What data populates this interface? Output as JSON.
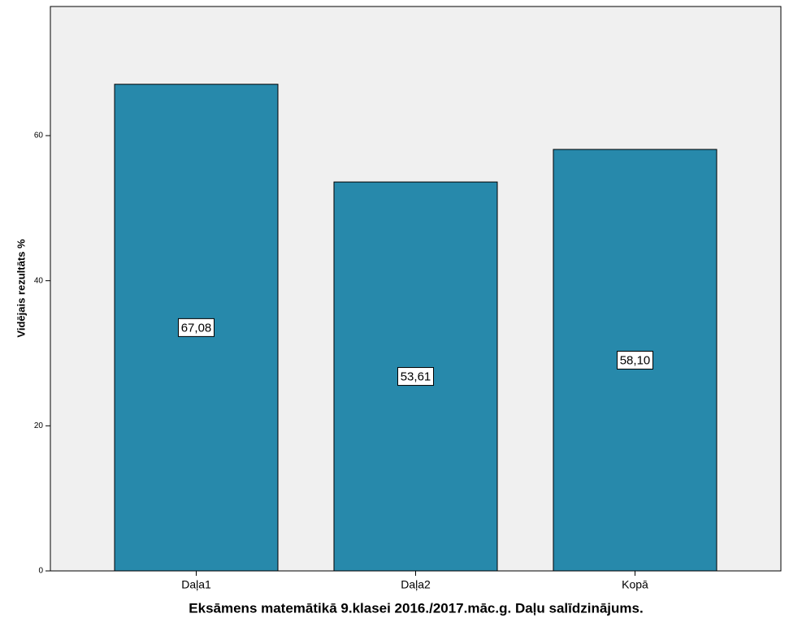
{
  "chart_data": {
    "type": "bar",
    "x_label": "Eksāmens matemātikā 9.klasei 2016./2017.māc.g. Daļu salīdzinājums.",
    "y_label": "Vidējais rezultāts %",
    "categories": [
      "Daļa1",
      "Daļa2",
      "Kopā"
    ],
    "values": [
      67.08,
      53.61,
      58.1
    ],
    "value_labels": [
      "67,08",
      "53,61",
      "58,10"
    ],
    "color": "#2789ab",
    "ylim": [
      0,
      77.8
    ],
    "yticks": [
      0,
      20,
      40,
      60
    ],
    "grid": false
  }
}
